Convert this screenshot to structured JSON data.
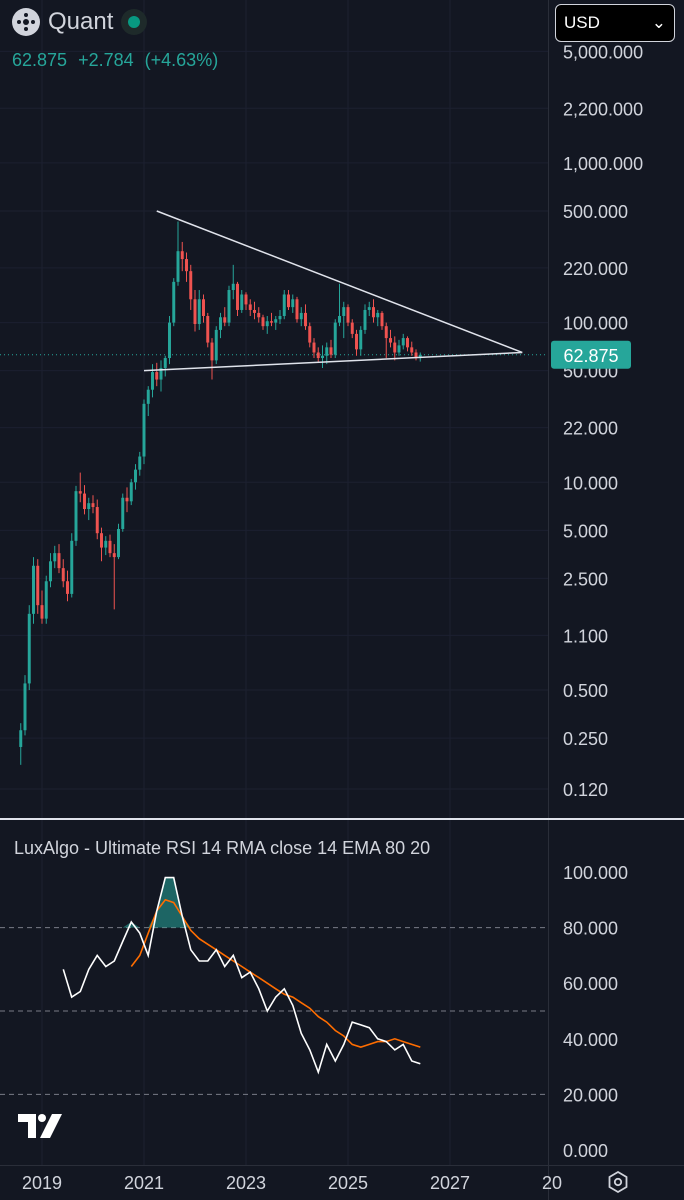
{
  "header": {
    "symbol": "Quant",
    "last_price": "62.875",
    "change": "+2.784",
    "change_pct": "(+4.63%)",
    "currency": "USD"
  },
  "price_tag": "62.875",
  "indicator_label": "LuxAlgo - Ultimate RSI 14 RMA close 14 EMA 80 20",
  "colors": {
    "background": "#131722",
    "up": "#26a69a",
    "down": "#ef5350",
    "trendline": "#e0e3eb",
    "rsi_line": "#ffffff",
    "signal_line": "#ff6d00",
    "panel_divider": "#e0e3eb"
  },
  "icons": {
    "logo": "quant-logo-icon",
    "tradingview": "tradingview-logo-icon",
    "settings": "settings-icon",
    "dropdown": "chevron-down-icon"
  },
  "chart_data": [
    {
      "type": "candlestick",
      "scale": "log",
      "price_axis_labels": [
        "5,000.000",
        "2,200.000",
        "1,000.000",
        "500.000",
        "220.000",
        "100.000",
        "50.000",
        "22.000",
        "10.000",
        "5.000",
        "2.500",
        "1.100",
        "0.500",
        "0.250",
        "0.120"
      ],
      "price_axis_values": [
        5000,
        2200,
        1000,
        500,
        220,
        100,
        50,
        22,
        10,
        5,
        2.5,
        1.1,
        0.5,
        0.25,
        0.12
      ],
      "ylim": [
        0.09,
        5000
      ],
      "last_price": 62.875,
      "xlim": [
        "2018-08",
        "2028-12"
      ],
      "candles": [
        [
          "2018-08",
          0.22,
          0.31,
          0.17,
          0.28
        ],
        [
          "2018-09",
          0.28,
          0.62,
          0.26,
          0.55
        ],
        [
          "2018-10",
          0.55,
          1.7,
          0.5,
          1.5
        ],
        [
          "2018-11",
          1.5,
          3.4,
          1.3,
          3.0
        ],
        [
          "2018-12",
          3.0,
          3.3,
          1.5,
          1.7
        ],
        [
          "2019-01",
          1.7,
          2.1,
          1.3,
          1.4
        ],
        [
          "2019-02",
          1.4,
          2.6,
          1.3,
          2.4
        ],
        [
          "2019-03",
          2.4,
          3.6,
          2.2,
          3.2
        ],
        [
          "2019-04",
          3.2,
          4.0,
          2.9,
          3.6
        ],
        [
          "2019-05",
          3.6,
          4.1,
          2.7,
          2.9
        ],
        [
          "2019-06",
          2.9,
          3.3,
          2.2,
          2.4
        ],
        [
          "2019-07",
          2.4,
          2.8,
          1.8,
          2.0
        ],
        [
          "2019-08",
          2.0,
          4.8,
          1.9,
          4.3
        ],
        [
          "2019-09",
          4.3,
          9.5,
          4.0,
          8.8
        ],
        [
          "2019-10",
          8.8,
          11.5,
          7.5,
          8.5
        ],
        [
          "2019-11",
          8.5,
          9.6,
          6.3,
          6.8
        ],
        [
          "2019-12",
          6.8,
          8.0,
          5.8,
          7.4
        ],
        [
          "2020-01",
          7.4,
          8.3,
          6.4,
          7.0
        ],
        [
          "2020-02",
          7.0,
          7.8,
          4.4,
          4.8
        ],
        [
          "2020-03",
          4.8,
          5.2,
          3.2,
          3.9
        ],
        [
          "2020-04",
          3.9,
          4.6,
          3.5,
          4.3
        ],
        [
          "2020-05",
          4.3,
          4.7,
          3.4,
          3.6
        ],
        [
          "2020-06",
          3.6,
          4.1,
          1.6,
          3.4
        ],
        [
          "2020-07",
          3.4,
          5.5,
          3.3,
          5.1
        ],
        [
          "2020-08",
          5.1,
          8.5,
          4.9,
          8.0
        ],
        [
          "2020-09",
          8.0,
          9.3,
          6.5,
          7.6
        ],
        [
          "2020-10",
          7.6,
          10.5,
          7.2,
          10.0
        ],
        [
          "2020-11",
          10.0,
          13.0,
          9.0,
          12.0
        ],
        [
          "2020-12",
          12.0,
          15.5,
          11.0,
          14.5
        ],
        [
          "2021-01",
          14.5,
          33.0,
          13.0,
          31.0
        ],
        [
          "2021-02",
          31.0,
          40.0,
          26.0,
          38.0
        ],
        [
          "2021-03",
          38.0,
          55.0,
          34.0,
          49.0
        ],
        [
          "2021-04",
          49.0,
          56.0,
          40.0,
          44.0
        ],
        [
          "2021-05",
          44.0,
          58.0,
          37.0,
          52.0
        ],
        [
          "2021-06",
          52.0,
          62.0,
          46.0,
          60.0
        ],
        [
          "2021-07",
          60.0,
          110.0,
          55.0,
          100.0
        ],
        [
          "2021-08",
          100.0,
          190.0,
          95.0,
          180.0
        ],
        [
          "2021-09",
          180.0,
          430.0,
          170.0,
          280.0
        ],
        [
          "2021-10",
          280.0,
          320.0,
          210.0,
          250.0
        ],
        [
          "2021-11",
          250.0,
          275.0,
          180.0,
          210.0
        ],
        [
          "2021-12",
          210.0,
          230.0,
          120.0,
          140.0
        ],
        [
          "2022-01",
          140.0,
          160.0,
          88.0,
          98.0
        ],
        [
          "2022-02",
          98.0,
          160.0,
          90.0,
          140.0
        ],
        [
          "2022-03",
          140.0,
          150.0,
          100.0,
          110.0
        ],
        [
          "2022-04",
          110.0,
          115.0,
          70.0,
          75.0
        ],
        [
          "2022-05",
          75.0,
          80.0,
          44.0,
          58.0
        ],
        [
          "2022-06",
          58.0,
          95.0,
          55.0,
          90.0
        ],
        [
          "2022-07",
          90.0,
          115.0,
          80.0,
          108.0
        ],
        [
          "2022-08",
          108.0,
          125.0,
          95.0,
          100.0
        ],
        [
          "2022-09",
          100.0,
          170.0,
          95.0,
          160.0
        ],
        [
          "2022-10",
          160.0,
          230.0,
          140.0,
          175.0
        ],
        [
          "2022-11",
          175.0,
          180.0,
          110.0,
          120.0
        ],
        [
          "2022-12",
          120.0,
          160.0,
          115.0,
          150.0
        ],
        [
          "2023-01",
          150.0,
          155.0,
          120.0,
          130.0
        ],
        [
          "2023-02",
          130.0,
          140.0,
          110.0,
          120.0
        ],
        [
          "2023-03",
          120.0,
          135.0,
          105.0,
          115.0
        ],
        [
          "2023-04",
          115.0,
          125.0,
          100.0,
          108.0
        ],
        [
          "2023-05",
          108.0,
          112.0,
          90.0,
          95.0
        ],
        [
          "2023-06",
          95.0,
          110.0,
          85.0,
          102.0
        ],
        [
          "2023-07",
          102.0,
          115.0,
          95.0,
          100.0
        ],
        [
          "2023-08",
          100.0,
          110.0,
          90.0,
          105.0
        ],
        [
          "2023-09",
          105.0,
          120.0,
          98.0,
          110.0
        ],
        [
          "2023-10",
          110.0,
          160.0,
          105.0,
          150.0
        ],
        [
          "2023-11",
          150.0,
          160.0,
          120.0,
          125.0
        ],
        [
          "2023-12",
          125.0,
          150.0,
          115.0,
          140.0
        ],
        [
          "2024-01",
          140.0,
          145.0,
          100.0,
          105.0
        ],
        [
          "2024-02",
          105.0,
          125.0,
          95.0,
          115.0
        ],
        [
          "2024-03",
          115.0,
          130.0,
          90.0,
          95.0
        ],
        [
          "2024-04",
          95.0,
          100.0,
          70.0,
          75.0
        ],
        [
          "2024-05",
          75.0,
          80.0,
          60.0,
          65.0
        ],
        [
          "2024-06",
          65.0,
          70.0,
          57.0,
          60.0
        ],
        [
          "2024-07",
          60.0,
          72.0,
          52.0,
          62.0
        ],
        [
          "2024-08",
          62.0,
          75.0,
          55.0,
          70.0
        ],
        [
          "2024-09",
          70.0,
          78.0,
          60.0,
          63.0
        ],
        [
          "2024-10",
          63.0,
          105.0,
          60.0,
          100.0
        ],
        [
          "2024-11",
          100.0,
          175.0,
          95.0,
          110.0
        ],
        [
          "2024-12",
          110.0,
          135.0,
          80.0,
          125.0
        ],
        [
          "2025-01",
          125.0,
          130.0,
          95.0,
          100.0
        ],
        [
          "2025-02",
          100.0,
          105.0,
          80.0,
          85.0
        ],
        [
          "2025-03",
          85.0,
          90.0,
          62.0,
          68.0
        ],
        [
          "2025-04",
          68.0,
          95.0,
          62.0,
          90.0
        ],
        [
          "2025-05",
          90.0,
          130.0,
          85.0,
          120.0
        ],
        [
          "2025-06",
          120.0,
          135.0,
          110.0,
          125.0
        ],
        [
          "2025-07",
          125.0,
          140.0,
          100.0,
          108.0
        ],
        [
          "2025-08",
          108.0,
          120.0,
          95.0,
          115.0
        ],
        [
          "2025-09",
          115.0,
          118.0,
          90.0,
          95.0
        ],
        [
          "2025-10",
          95.0,
          100.0,
          60.0,
          80.0
        ],
        [
          "2025-11",
          80.0,
          90.0,
          70.0,
          75.0
        ],
        [
          "2025-12",
          75.0,
          82.0,
          58.0,
          65.0
        ],
        [
          "2026-01",
          65.0,
          78.0,
          62.0,
          72.0
        ],
        [
          "2026-02",
          72.0,
          85.0,
          68.0,
          80.0
        ],
        [
          "2026-03",
          80.0,
          82.0,
          66.0,
          70.0
        ],
        [
          "2026-04",
          70.0,
          76.0,
          62.0,
          65.0
        ],
        [
          "2026-05",
          65.0,
          68.0,
          58.0,
          60.0
        ],
        [
          "2026-06",
          60.0,
          65.0,
          57.0,
          62.875
        ]
      ],
      "trendlines": [
        {
          "name": "upper",
          "from": [
            "2021-04",
            500
          ],
          "to": [
            "2028-06",
            65
          ]
        },
        {
          "name": "lower",
          "from": [
            "2021-01",
            50
          ],
          "to": [
            "2028-06",
            65
          ]
        }
      ]
    },
    {
      "type": "line",
      "title": "LuxAlgo - Ultimate RSI 14 RMA close 14 EMA 80 20",
      "ylim": [
        0,
        100
      ],
      "y_axis_labels": [
        "100.000",
        "80.000",
        "60.000",
        "40.000",
        "20.000",
        "0.000"
      ],
      "y_axis_values": [
        100,
        80,
        60,
        40,
        20,
        0
      ],
      "levels": [
        80,
        50,
        20
      ],
      "x_axis_labels": [
        "2019",
        "2021",
        "2023",
        "2025",
        "2027",
        "20"
      ],
      "x_axis_values": [
        "2019-01",
        "2021-01",
        "2023-01",
        "2025-01",
        "2027-01",
        "2029-01"
      ],
      "series": [
        {
          "role": "rsi",
          "x": [
            "2019-06",
            "2019-08",
            "2019-10",
            "2019-12",
            "2020-02",
            "2020-04",
            "2020-06",
            "2020-08",
            "2020-10",
            "2020-12",
            "2021-02",
            "2021-04",
            "2021-06",
            "2021-08",
            "2021-10",
            "2021-12",
            "2022-02",
            "2022-04",
            "2022-06",
            "2022-08",
            "2022-10",
            "2022-12",
            "2023-02",
            "2023-04",
            "2023-06",
            "2023-08",
            "2023-10",
            "2023-12",
            "2024-02",
            "2024-04",
            "2024-06",
            "2024-08",
            "2024-10",
            "2024-12",
            "2025-02",
            "2025-04",
            "2025-06",
            "2025-08",
            "2025-10",
            "2025-12",
            "2026-02",
            "2026-04",
            "2026-06"
          ],
          "values": [
            65,
            55,
            57,
            65,
            70,
            66,
            68,
            75,
            82,
            78,
            70,
            86,
            98,
            98,
            84,
            72,
            68,
            68,
            72,
            66,
            70,
            62,
            64,
            58,
            50,
            55,
            58,
            52,
            42,
            36,
            28,
            38,
            32,
            38,
            46,
            45,
            44,
            40,
            39,
            36,
            38,
            32,
            31
          ]
        },
        {
          "role": "signal",
          "x": [
            "2020-10",
            "2020-12",
            "2021-02",
            "2021-04",
            "2021-06",
            "2021-08",
            "2021-10",
            "2021-12",
            "2022-02",
            "2022-04",
            "2022-06",
            "2022-08",
            "2022-10",
            "2022-12",
            "2023-02",
            "2023-04",
            "2023-06",
            "2023-08",
            "2023-10",
            "2023-12",
            "2024-02",
            "2024-04",
            "2024-06",
            "2024-08",
            "2024-10",
            "2024-12",
            "2025-02",
            "2025-04",
            "2025-06",
            "2025-08",
            "2025-10",
            "2025-12",
            "2026-02",
            "2026-04",
            "2026-06"
          ],
          "values": [
            66,
            70,
            78,
            86,
            90,
            89,
            84,
            79,
            76,
            74,
            72,
            70,
            68,
            66,
            64,
            62,
            60,
            58,
            56,
            55,
            53,
            51,
            48,
            46,
            43,
            41,
            38,
            37,
            38,
            39,
            39,
            40,
            39,
            38,
            37
          ]
        }
      ]
    }
  ]
}
